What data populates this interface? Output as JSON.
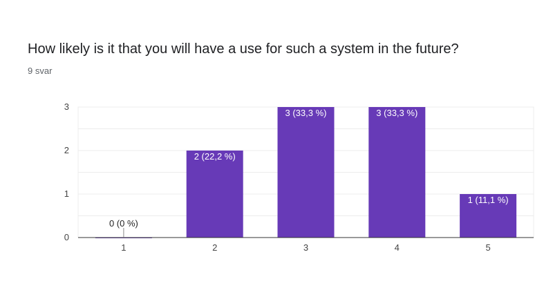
{
  "header": {
    "question": "How likely is it that you will have a use for such a system in the future?",
    "responses": "9 svar"
  },
  "colors": {
    "bar": "#673ab7",
    "grid": "#ececec",
    "axis": "#333333",
    "label_inside": "#ffffff",
    "label_outside": "#222222"
  },
  "chart_data": {
    "type": "bar",
    "categories": [
      "1",
      "2",
      "3",
      "4",
      "5"
    ],
    "values": [
      0,
      2,
      3,
      3,
      1
    ],
    "data_labels": [
      "0 (0 %)",
      "2 (22,2 %)",
      "3 (33,3 %)",
      "3 (33,3 %)",
      "1 (11,1 %)"
    ],
    "y_ticks": [
      "0",
      "1",
      "2",
      "3"
    ],
    "ylim": [
      0,
      3
    ],
    "grid": true
  }
}
